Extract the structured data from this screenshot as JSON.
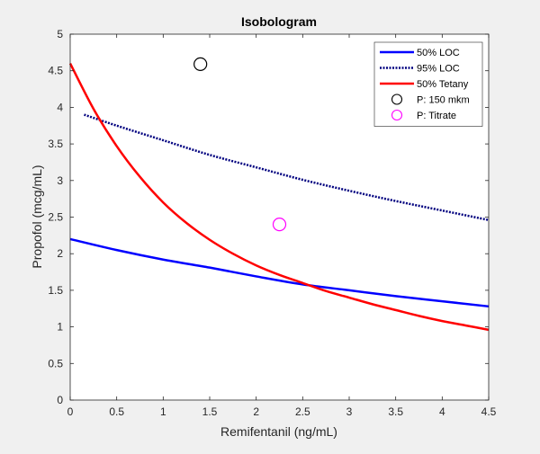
{
  "chart_data": {
    "type": "line",
    "title": "Isobologram",
    "xlabel": "Remifentanil (ng/mL)",
    "ylabel": "Propofol (mcg/mL)",
    "xlim": [
      0,
      4.5
    ],
    "ylim": [
      0,
      5
    ],
    "x_ticks": [
      "0",
      "0.5",
      "1",
      "1.5",
      "2",
      "2.5",
      "3",
      "3.5",
      "4",
      "4.5"
    ],
    "y_ticks": [
      "0",
      "0.5",
      "1",
      "1.5",
      "2",
      "2.5",
      "3",
      "3.5",
      "4",
      "4.5",
      "5"
    ],
    "x_tick_values": [
      0,
      0.5,
      1,
      1.5,
      2,
      2.5,
      3,
      3.5,
      4,
      4.5
    ],
    "y_tick_values": [
      0,
      0.5,
      1,
      1.5,
      2,
      2.5,
      3,
      3.5,
      4,
      4.5,
      5
    ],
    "grid": false,
    "legend_position": "top-right",
    "series": [
      {
        "name": "50% LOC",
        "style": "solid",
        "color": "#0000ff",
        "x": [
          0,
          0.5,
          1,
          1.5,
          2,
          2.5,
          3,
          3.5,
          4,
          4.5
        ],
        "y": [
          2.2,
          2.05,
          1.92,
          1.81,
          1.69,
          1.58,
          1.5,
          1.42,
          1.35,
          1.28
        ]
      },
      {
        "name": "95% LOC",
        "style": "dotted",
        "color": "#00007f",
        "x": [
          0.15,
          0.5,
          1,
          1.5,
          2,
          2.5,
          3,
          3.5,
          4,
          4.5
        ],
        "y": [
          3.9,
          3.75,
          3.55,
          3.35,
          3.18,
          3.01,
          2.86,
          2.72,
          2.59,
          2.46
        ]
      },
      {
        "name": "50% Tetany",
        "style": "solid",
        "color": "#ff0000",
        "x": [
          0,
          0.25,
          0.5,
          0.75,
          1,
          1.25,
          1.5,
          1.75,
          2,
          2.25,
          2.5,
          2.75,
          3,
          3.25,
          3.5,
          3.75,
          4,
          4.25,
          4.5
        ],
        "y": [
          4.6,
          3.98,
          3.47,
          3.05,
          2.7,
          2.42,
          2.19,
          2.0,
          1.84,
          1.71,
          1.6,
          1.49,
          1.4,
          1.31,
          1.23,
          1.15,
          1.08,
          1.02,
          0.96
        ]
      }
    ],
    "points": [
      {
        "name": "P: 150 mkm",
        "color": "#000000",
        "x": 1.4,
        "y": 4.59
      },
      {
        "name": "P: Titrate",
        "color": "#ff00ff",
        "x": 2.25,
        "y": 2.4
      }
    ]
  }
}
